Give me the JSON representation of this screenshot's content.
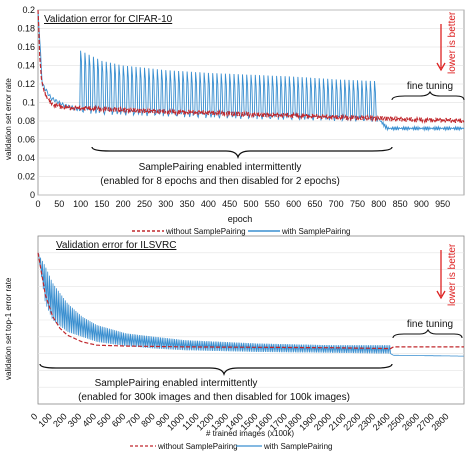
{
  "chart_data": [
    {
      "type": "line",
      "title": "Validation error for CIFAR-10",
      "xlabel": "epoch",
      "ylabel": "validation set error rate",
      "xlim": [
        0,
        1000
      ],
      "ylim": [
        0,
        0.2
      ],
      "x_ticks": [
        0,
        50,
        100,
        150,
        200,
        250,
        300,
        350,
        400,
        450,
        500,
        550,
        600,
        650,
        700,
        750,
        800,
        850,
        900,
        950
      ],
      "y_ticks": [
        0,
        0.02,
        0.04,
        0.06,
        0.08,
        0.1,
        0.12,
        0.14,
        0.16,
        0.18,
        0.2
      ],
      "tick_labels_y": [
        "0",
        "0.02",
        "0.04",
        "0.06",
        "0.08",
        "0.1",
        "0.12",
        "0.14",
        "0.16",
        "0.18",
        "0.2"
      ],
      "grid": "y",
      "colors": {
        "without": "#c0282d",
        "with": "#3a8fd0"
      },
      "series": [
        {
          "name": "without SamplePairing",
          "style": "dashed",
          "x": [
            0,
            5,
            10,
            20,
            30,
            40,
            60,
            80,
            100,
            150,
            200,
            300,
            400,
            500,
            600,
            700,
            800,
            850,
            900,
            950,
            1000
          ],
          "values": [
            0.2,
            0.14,
            0.12,
            0.105,
            0.1,
            0.097,
            0.095,
            0.094,
            0.094,
            0.093,
            0.092,
            0.09,
            0.089,
            0.087,
            0.086,
            0.084,
            0.083,
            0.082,
            0.081,
            0.081,
            0.08
          ]
        },
        {
          "name": "with SamplePairing",
          "style": "solid",
          "pattern": "spikes every 10 epochs",
          "x": [
            0,
            10,
            30,
            60,
            100,
            150,
            200,
            300,
            400,
            500,
            600,
            700,
            800,
            820,
            900,
            1000
          ],
          "base_values": [
            0.2,
            0.12,
            0.105,
            0.097,
            0.092,
            0.09,
            0.089,
            0.088,
            0.086,
            0.085,
            0.084,
            0.083,
            0.082,
            0.072,
            0.072,
            0.072
          ],
          "peak_x": [
            100,
            150,
            200,
            300,
            400,
            500,
            600,
            700,
            800
          ],
          "peak_values": [
            0.156,
            0.145,
            0.14,
            0.135,
            0.132,
            0.13,
            0.128,
            0.125,
            0.123
          ]
        }
      ],
      "annotations": [
        {
          "text": "fine tuning",
          "x": 900
        },
        {
          "text": "SamplePairing enabled intermittently",
          "x": 450
        },
        {
          "text": "(enabled for 8 epochs and then disabled for 2 epochs)",
          "x": 450
        },
        {
          "text": "lower is better"
        }
      ]
    },
    {
      "type": "line",
      "title": "Validation error for ILSVRC",
      "xlabel": "# trained images (x100k)",
      "ylabel": "validation set top-1 error rate",
      "xlim": [
        0,
        2900
      ],
      "ylim": [
        0,
        1.0
      ],
      "x_ticks": [
        0,
        100,
        200,
        300,
        400,
        500,
        600,
        700,
        800,
        900,
        1000,
        1100,
        1200,
        1300,
        1400,
        1500,
        1600,
        1700,
        1800,
        1900,
        2000,
        2100,
        2200,
        2300,
        2400,
        2500,
        2600,
        2700,
        2800
      ],
      "grid": "y",
      "colors": {
        "without": "#c0282d",
        "with": "#3a8fd0"
      },
      "series": [
        {
          "name": "without SamplePairing",
          "style": "dashed",
          "x": [
            0,
            50,
            100,
            150,
            200,
            300,
            400,
            600,
            1000,
            2000,
            2400,
            2420,
            2900
          ],
          "values": [
            0.9,
            0.65,
            0.52,
            0.45,
            0.41,
            0.37,
            0.35,
            0.345,
            0.34,
            0.335,
            0.33,
            0.34,
            0.34
          ]
        },
        {
          "name": "with SamplePairing",
          "style": "solid",
          "pattern": "oscillating",
          "x": [
            0,
            50,
            100,
            200,
            300,
            400,
            600,
            800,
            1000,
            1500,
            2000,
            2400,
            2420,
            2900
          ],
          "upper_values": [
            0.9,
            0.82,
            0.72,
            0.6,
            0.52,
            0.47,
            0.42,
            0.4,
            0.38,
            0.36,
            0.35,
            0.35,
            0.3,
            0.29
          ],
          "lower_values": [
            0.9,
            0.6,
            0.5,
            0.43,
            0.4,
            0.37,
            0.345,
            0.33,
            0.32,
            0.31,
            0.305,
            0.3,
            0.29,
            0.285
          ]
        }
      ],
      "annotations": [
        {
          "text": "fine tuning",
          "x": 2650
        },
        {
          "text": "SamplePairing enabled intermittently",
          "x": 1150
        },
        {
          "text": "(enabled for 300k images and then disabled for 100k images)",
          "x": 1150
        },
        {
          "text": "lower is better"
        }
      ],
      "legend": {
        "placement": "bottom",
        "entries": [
          "without SamplePairing",
          "with SamplePairing"
        ]
      }
    }
  ]
}
